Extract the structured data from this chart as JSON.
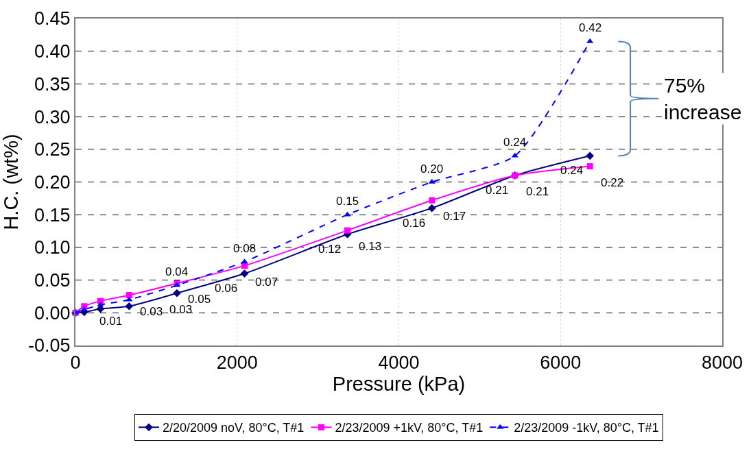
{
  "chart_data": {
    "type": "line",
    "xlabel": "Pressure (kPa)",
    "ylabel": "H.C. (wt%)",
    "x": [
      0,
      109,
      309,
      664,
      1255,
      2091,
      3364,
      4409,
      5436,
      6364
    ],
    "series": [
      {
        "name": "2/20/2009 noV, 80°C, T#1",
        "color": "#000080",
        "marker": "diamond",
        "line_style": "solid",
        "values": [
          0,
          0.001,
          0.006,
          0.01,
          0.03,
          0.06,
          0.12,
          0.16,
          0.21,
          0.24
        ],
        "value_labels": [
          null,
          null,
          null,
          "0.01",
          "0.03",
          "0.06",
          "0.12",
          "0.16",
          "0.21",
          "0.24"
        ]
      },
      {
        "name": "2/23/2009 +1kV, 80°C, T#1",
        "color": "#ff00ff",
        "marker": "square",
        "line_style": "solid",
        "values": [
          0,
          0.01,
          0.018,
          0.027,
          0.045,
          0.072,
          0.126,
          0.172,
          0.21,
          0.224
        ],
        "value_labels": [
          null,
          null,
          null,
          "0.03",
          "0.05",
          "0.07",
          "0.13",
          "0.17",
          "0.21",
          "0.22"
        ]
      },
      {
        "name": "2/23/2009 -1kV, 80°C, T#1",
        "color": "#0000ff",
        "marker": "triangle",
        "line_style": "dashed",
        "values": [
          0,
          0.005,
          0.012,
          0.02,
          0.042,
          0.078,
          0.15,
          0.2,
          0.24,
          0.415
        ],
        "value_labels": [
          null,
          null,
          null,
          null,
          "0.04",
          "0.08",
          "0.15",
          "0.20",
          "0.24",
          "0.42"
        ]
      }
    ],
    "xlim": [
      0,
      8000
    ],
    "xticks": [
      0,
      2000,
      4000,
      6000,
      8000
    ],
    "ylim": [
      -0.05,
      0.45
    ],
    "yticks": [
      {
        "value": -0.05,
        "label": "-0.05"
      },
      {
        "value": 0,
        "label": "0.00"
      },
      {
        "value": 0.05,
        "label": "0.05"
      },
      {
        "value": 0.1,
        "label": "0.10"
      },
      {
        "value": 0.15,
        "label": "0.15"
      },
      {
        "value": 0.2,
        "label": "0.20"
      },
      {
        "value": 0.25,
        "label": "0.25"
      },
      {
        "value": 0.3,
        "label": "0.30"
      },
      {
        "value": 0.35,
        "label": "0.35"
      },
      {
        "value": 0.4,
        "label": "0.40"
      },
      {
        "value": 0.45,
        "label": "0.45"
      }
    ],
    "grid": true,
    "legend": "bottom",
    "annotations": [
      "75% increase"
    ]
  }
}
